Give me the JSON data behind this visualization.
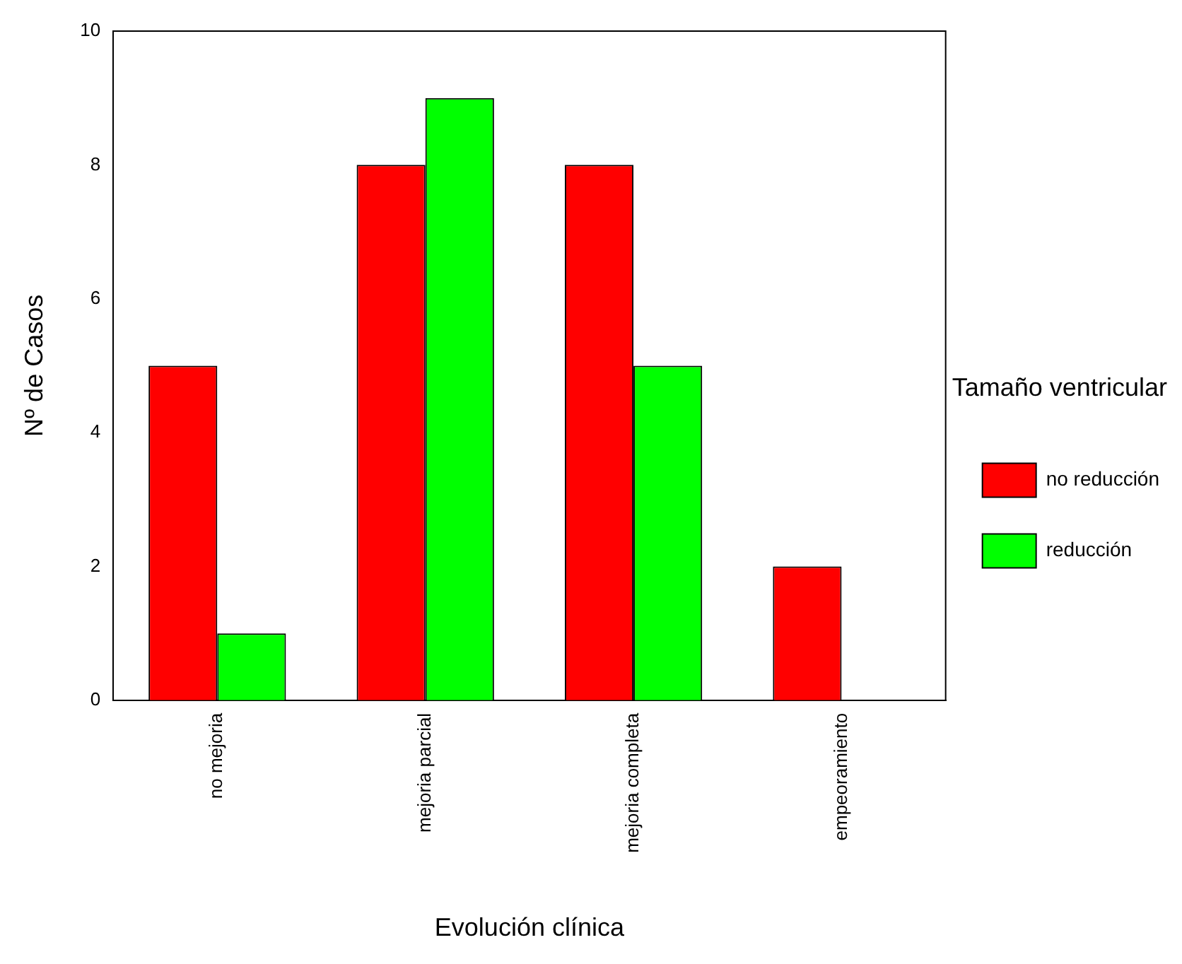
{
  "chart_data": {
    "type": "bar",
    "xlabel": "Evolución clínica",
    "ylabel": "Nº de Casos",
    "legend_title": "Tamaño ventricular",
    "categories": [
      "no mejoria",
      "mejoria parcial",
      "mejoria completa",
      "empeoramiento"
    ],
    "series": [
      {
        "name": "no reducción",
        "color": "#ff0000",
        "values": [
          5,
          8,
          8,
          2
        ]
      },
      {
        "name": "reducción",
        "color": "#00ff00",
        "values": [
          1,
          9,
          5,
          0
        ]
      }
    ],
    "ylim": [
      0,
      10
    ],
    "yticks": [
      0,
      2,
      4,
      6,
      8,
      10
    ],
    "grid": false,
    "legend": "right"
  }
}
